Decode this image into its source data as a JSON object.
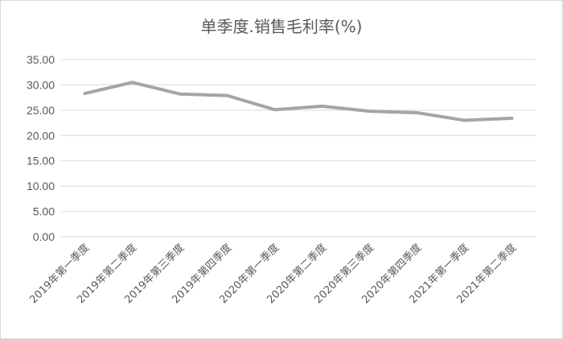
{
  "chart_data": {
    "type": "line",
    "title": "单季度.销售毛利率(%)",
    "xlabel": "",
    "ylabel": "",
    "ylim": [
      0,
      35
    ],
    "grid": true,
    "legend": "none",
    "y_ticks": [
      "0.00",
      "5.00",
      "10.00",
      "15.00",
      "20.00",
      "25.00",
      "30.00",
      "35.00"
    ],
    "categories": [
      "2019年第一季度",
      "2019年第二季度",
      "2019年第三季度",
      "2019年第四季度",
      "2020年第一季度",
      "2020年第二季度",
      "2020年第三季度",
      "2020年第四季度",
      "2021年第一季度",
      "2021年第二季度"
    ],
    "series": [
      {
        "values": [
          28.3,
          30.5,
          28.2,
          27.9,
          25.1,
          25.8,
          24.8,
          24.5,
          23.0,
          23.4
        ],
        "color": "#a5a5a5"
      }
    ]
  }
}
